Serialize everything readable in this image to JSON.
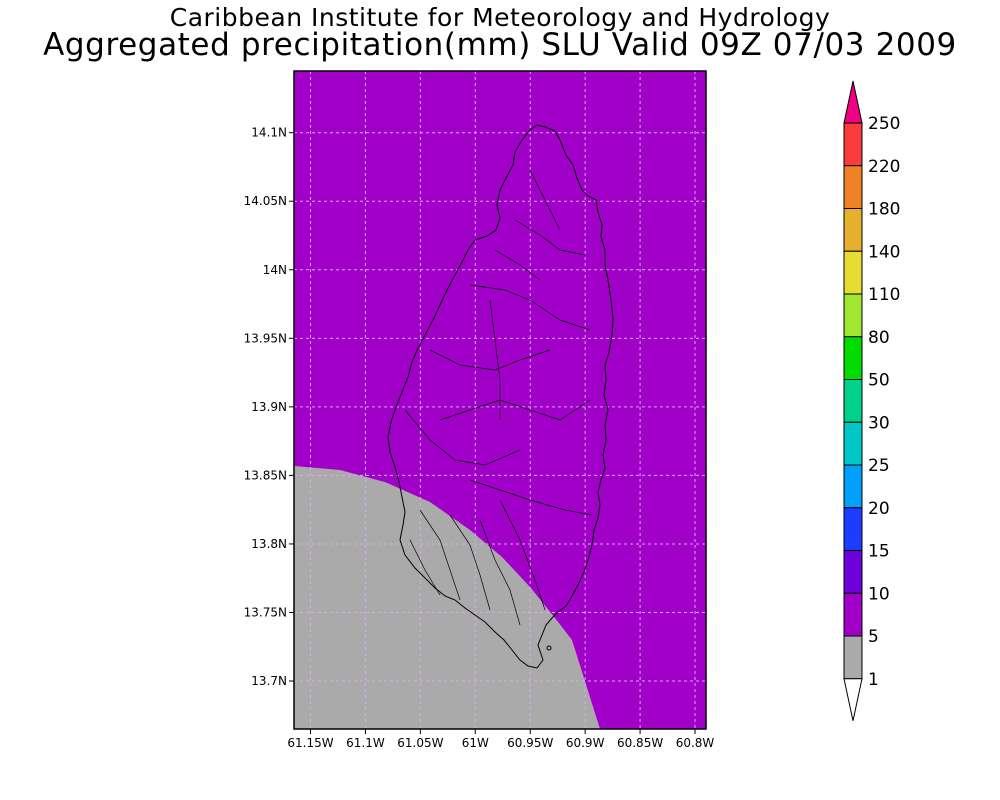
{
  "title": {
    "line1": "Caribbean Institute for Meteorology and Hydrology",
    "line2": "Aggregated precipitation(mm) SLU Valid 09Z 07/03 2009"
  },
  "map": {
    "region": "Saint Lucia",
    "lon_range": [
      -61.165,
      -60.79
    ],
    "lat_range": [
      13.665,
      14.145
    ],
    "grid": true,
    "lat_ticks": [
      {
        "value": 14.1,
        "label": "14.1N"
      },
      {
        "value": 14.05,
        "label": "14.05N"
      },
      {
        "value": 14.0,
        "label": "14N"
      },
      {
        "value": 13.95,
        "label": "13.95N"
      },
      {
        "value": 13.9,
        "label": "13.9N"
      },
      {
        "value": 13.85,
        "label": "13.85N"
      },
      {
        "value": 13.8,
        "label": "13.8N"
      },
      {
        "value": 13.75,
        "label": "13.75N"
      },
      {
        "value": 13.7,
        "label": "13.7N"
      }
    ],
    "lon_ticks": [
      {
        "value": -61.15,
        "label": "61.15W"
      },
      {
        "value": -61.1,
        "label": "61.1W"
      },
      {
        "value": -61.05,
        "label": "61.05W"
      },
      {
        "value": -61.0,
        "label": "61W"
      },
      {
        "value": -60.95,
        "label": "60.95W"
      },
      {
        "value": -60.9,
        "label": "60.9W"
      },
      {
        "value": -60.85,
        "label": "60.85W"
      },
      {
        "value": -60.8,
        "label": "60.8W"
      }
    ],
    "fields": [
      {
        "range": "5-10 mm",
        "color": "#a000c8",
        "extent": "north and east of map"
      },
      {
        "range": "1-5 mm",
        "color": "#aaaaaa",
        "extent": "south-west corner of map"
      }
    ]
  },
  "colorbar": {
    "levels": [
      "1",
      "5",
      "10",
      "15",
      "20",
      "25",
      "30",
      "50",
      "80",
      "110",
      "140",
      "180",
      "220",
      "250"
    ],
    "colors": [
      "#ffffff",
      "#aaaaaa",
      "#a000c8",
      "#6e00dc",
      "#1e3cff",
      "#00a0ff",
      "#00c8c8",
      "#00d28c",
      "#00dc00",
      "#a0e632",
      "#e6dc32",
      "#e6af2d",
      "#f08228",
      "#fa3c3c",
      "#f00082"
    ]
  }
}
